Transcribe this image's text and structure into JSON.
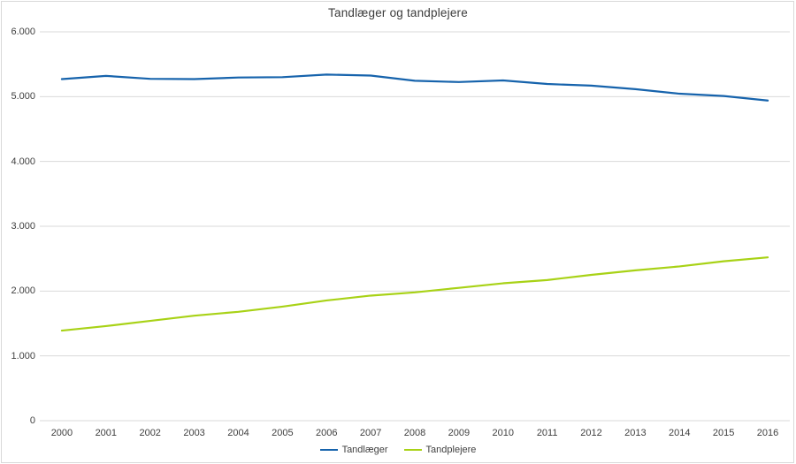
{
  "chart_data": {
    "type": "line",
    "title": "Tandlæger og tandplejere",
    "categories": [
      "2000",
      "2001",
      "2002",
      "2003",
      "2004",
      "2005",
      "2006",
      "2007",
      "2008",
      "2009",
      "2010",
      "2011",
      "2012",
      "2013",
      "2014",
      "2015",
      "2016"
    ],
    "series": [
      {
        "name": "Tandlæger",
        "color": "#1663ac",
        "values": [
          5270,
          5320,
          5275,
          5270,
          5295,
          5300,
          5340,
          5325,
          5245,
          5225,
          5250,
          5195,
          5170,
          5115,
          5045,
          5010,
          4940
        ]
      },
      {
        "name": "Tandplejere",
        "color": "#a8d216",
        "values": [
          1390,
          1460,
          1540,
          1620,
          1680,
          1760,
          1855,
          1930,
          1980,
          2050,
          2120,
          2170,
          2250,
          2320,
          2380,
          2460,
          2520
        ]
      }
    ],
    "xlabel": "",
    "ylabel": "",
    "ylim": [
      0,
      6000
    ],
    "ytick_step": 1000,
    "ytick_labels": [
      "0",
      "1.000",
      "2.000",
      "3.000",
      "4.000",
      "5.000",
      "6.000"
    ],
    "grid": true,
    "gridline_color": "#d9d9d9",
    "legend_position": "bottom"
  }
}
